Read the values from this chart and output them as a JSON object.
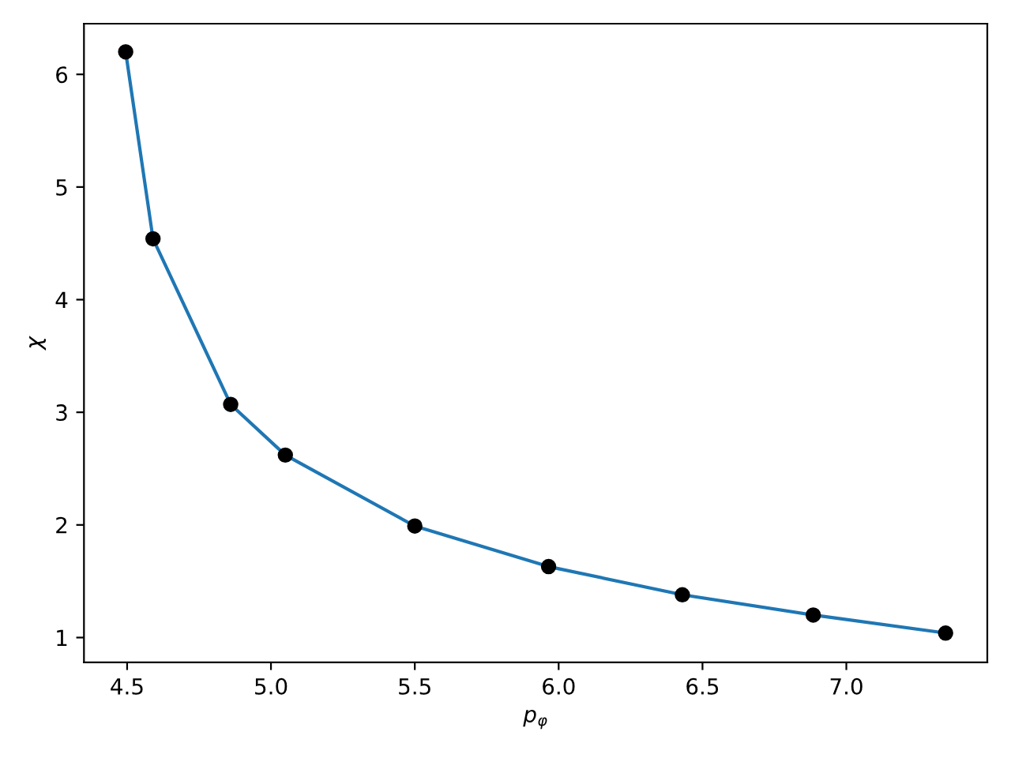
{
  "chart_data": {
    "type": "line",
    "xlabel": "p$_{φ}$",
    "ylabel": "χ",
    "x": [
      4.495,
      4.59,
      4.86,
      5.05,
      5.5,
      5.965,
      6.43,
      6.885,
      7.345
    ],
    "series": [
      {
        "color": "#1f77b4",
        "values": [
          6.2,
          4.54,
          3.07,
          2.62,
          1.99,
          1.63,
          1.38,
          1.2,
          1.04
        ]
      },
      {
        "type": "scatter",
        "color": "#000000",
        "values": [
          6.2,
          4.54,
          3.07,
          2.62,
          1.99,
          1.63,
          1.38,
          1.2,
          1.04
        ]
      }
    ],
    "xlim": [
      4.35,
      7.49
    ],
    "ylim": [
      0.78,
      6.45
    ],
    "xticks": [
      4.5,
      {
        "value": 5,
        "label": "5.0"
      },
      5.5,
      {
        "value": 6,
        "label": "6.0"
      },
      6.5,
      {
        "value": 7,
        "label": "7.0"
      }
    ],
    "yticks": [
      1,
      2,
      3,
      4,
      5,
      6
    ],
    "grid": false,
    "legend": false
  }
}
